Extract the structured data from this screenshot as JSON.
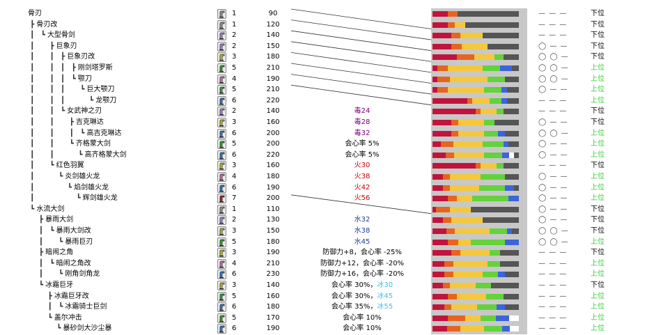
{
  "tree": [
    {
      "indent": "",
      "name": "骨刃"
    },
    {
      "indent": " ┣ ",
      "name": "骨刃改"
    },
    {
      "indent": " ┃   ┗ ",
      "name": "大型骨剑"
    },
    {
      "indent": " ┃       ┣ ",
      "name": "巨象刃"
    },
    {
      "indent": " ┃       ┃   ┣ ",
      "name": "巨象刃改"
    },
    {
      "indent": " ┃       ┃   ┃   ┣ ",
      "name": "刚剑塔罗斯"
    },
    {
      "indent": " ┃       ┃   ┃   ┗ ",
      "name": "颚刀"
    },
    {
      "indent": " ┃       ┃   ┃       ┗ ",
      "name": "巨大颚刀"
    },
    {
      "indent": " ┃       ┃   ┃           ┗ ",
      "name": "龙颚刀"
    },
    {
      "indent": " ┃       ┃   ┗ ",
      "name": "女武神之刃"
    },
    {
      "indent": " ┃       ┃       ┣ ",
      "name": "吉克琳达"
    },
    {
      "indent": " ┃       ┃       ┃   ┗ ",
      "name": "高吉克琳达"
    },
    {
      "indent": " ┃       ┃       ┗ ",
      "name": "齐格蒙大剑"
    },
    {
      "indent": " ┃       ┃           ┗ ",
      "name": "高齐格蒙大剑"
    },
    {
      "indent": " ┃       ┗ ",
      "name": "红色羽翼"
    },
    {
      "indent": " ┃           ┗ ",
      "name": "炎剑雄火龙"
    },
    {
      "indent": " ┃               ┗ ",
      "name": "焰剑雄火龙"
    },
    {
      "indent": " ┃                   ┗ ",
      "name": "辉剑雄火龙"
    },
    {
      "indent": " ┗ ",
      "name": "水流大剑"
    },
    {
      "indent": "     ┣ ",
      "name": "暴雨大剑"
    },
    {
      "indent": "     ┃   ┗ ",
      "name": "暴雨大剑改"
    },
    {
      "indent": "     ┃       ┗ ",
      "name": "暴雨巨刃"
    },
    {
      "indent": "     ┣ ",
      "name": "暗闹之角"
    },
    {
      "indent": "     ┃   ┗ ",
      "name": "暗闹之角改"
    },
    {
      "indent": "     ┃       ┗ ",
      "name": "刚角剑角龙"
    },
    {
      "indent": "     ┗ ",
      "name": "冰霜巨牙"
    },
    {
      "indent": "         ┣ ",
      "name": "冰霜巨牙改"
    },
    {
      "indent": "         ┃   ┗ ",
      "name": "冰霜骑士巨剑"
    },
    {
      "indent": "         ┗ ",
      "name": "盖尔冲击"
    },
    {
      "indent": "             ┗ ",
      "name": "暴砂剑大沙尘暴"
    }
  ],
  "colors": {
    "rarity_icons": {
      "1": "#a0a0a0",
      "2": "#b08ee8",
      "3": "#c8c820",
      "4": "#e070c0",
      "5": "#30b030",
      "6": "#3080e0",
      "7": "#b02020"
    },
    "sharpness": [
      "#c0143c",
      "#e8641e",
      "#f5c83c",
      "#64d23c",
      "#3c64dc",
      "#ffffff",
      "#555555"
    ],
    "element_fire": "#cc0000",
    "element_water": "#1e3c9c",
    "element_ice": "#40c0e0",
    "element_poison": "#800080",
    "rank_high": "#33cc33"
  },
  "weapons": [
    {
      "rarity": "1",
      "attack": "90",
      "special": [],
      "sharp": [
        16,
        10,
        0,
        0,
        0,
        0,
        64
      ],
      "slots": "— — —",
      "rank": "下位",
      "high": false
    },
    {
      "rarity": "1",
      "attack": "120",
      "special": [],
      "sharp": [
        18,
        8,
        12,
        0,
        0,
        0,
        62
      ],
      "slots": "— — —",
      "rank": "下位",
      "high": false
    },
    {
      "rarity": "2",
      "attack": "140",
      "special": [],
      "sharp": [
        22,
        10,
        26,
        0,
        0,
        0,
        42
      ],
      "slots": "— — —",
      "rank": "下位",
      "high": false
    },
    {
      "rarity": "2",
      "attack": "150",
      "special": [],
      "sharp": [
        22,
        12,
        30,
        0,
        0,
        0,
        36
      ],
      "slots": "◯ — —",
      "rank": "下位",
      "high": false
    },
    {
      "rarity": "3",
      "attack": "180",
      "special": [],
      "sharp": [
        28,
        20,
        24,
        10,
        0,
        0,
        18
      ],
      "slots": "◯ ◯ —",
      "rank": "下位",
      "high": false
    },
    {
      "rarity": "5",
      "attack": "210",
      "special": [],
      "sharp": [
        6,
        12,
        40,
        20,
        14,
        0,
        8
      ],
      "slots": "◯ ◯ —",
      "rank": "上位",
      "high": true
    },
    {
      "rarity": "4",
      "attack": "190",
      "special": [],
      "sharp": [
        6,
        14,
        44,
        20,
        0,
        0,
        16
      ],
      "slots": "◯ ◯ —",
      "rank": "上位",
      "high": true
    },
    {
      "rarity": "5",
      "attack": "210",
      "special": [],
      "sharp": [
        6,
        12,
        42,
        20,
        6,
        0,
        14
      ],
      "slots": "◯ — —",
      "rank": "上位",
      "high": true
    },
    {
      "rarity": "6",
      "attack": "220",
      "special": [],
      "sharp": [
        40,
        6,
        20,
        14,
        6,
        0,
        14
      ],
      "slots": "— — —",
      "rank": "上位",
      "high": true
    },
    {
      "rarity": "2",
      "attack": "140",
      "special": [
        {
          "text": "毒24",
          "color": "poison"
        }
      ],
      "sharp": [
        50,
        6,
        18,
        8,
        0,
        0,
        18
      ],
      "slots": "— — —",
      "rank": "下位",
      "high": false
    },
    {
      "rarity": "3",
      "attack": "160",
      "special": [
        {
          "text": "毒28",
          "color": "poison"
        }
      ],
      "sharp": [
        22,
        8,
        30,
        12,
        0,
        0,
        28
      ],
      "slots": "◯ — —",
      "rank": "下位",
      "high": false
    },
    {
      "rarity": "6",
      "attack": "200",
      "special": [
        {
          "text": "毒32",
          "color": "poison"
        }
      ],
      "sharp": [
        22,
        8,
        30,
        16,
        8,
        0,
        16
      ],
      "slots": "◯ ◯ —",
      "rank": "上位",
      "high": true
    },
    {
      "rarity": "5",
      "attack": "200",
      "special": [
        {
          "text": "会心率 5%",
          "color": ""
        }
      ],
      "sharp": [
        10,
        14,
        34,
        24,
        6,
        0,
        12
      ],
      "slots": "◯ — —",
      "rank": "上位",
      "high": true
    },
    {
      "rarity": "6",
      "attack": "220",
      "special": [
        {
          "text": "会心率 5%",
          "color": ""
        }
      ],
      "sharp": [
        16,
        10,
        36,
        22,
        8,
        6,
        6
      ],
      "slots": "◯ — —",
      "rank": "上位",
      "high": true
    },
    {
      "rarity": "3",
      "attack": "160",
      "special": [
        {
          "text": "火30",
          "color": "fire"
        }
      ],
      "sharp": [
        50,
        6,
        18,
        8,
        0,
        0,
        18
      ],
      "slots": "— — —",
      "rank": "下位",
      "high": false
    },
    {
      "rarity": "4",
      "attack": "180",
      "special": [
        {
          "text": "火38",
          "color": "fire"
        }
      ],
      "sharp": [
        12,
        8,
        36,
        28,
        0,
        0,
        16
      ],
      "slots": "◯ — —",
      "rank": "上位",
      "high": true
    },
    {
      "rarity": "6",
      "attack": "190",
      "special": [
        {
          "text": "火42",
          "color": "fire"
        }
      ],
      "sharp": [
        12,
        8,
        34,
        30,
        10,
        0,
        6
      ],
      "slots": "◯ — —",
      "rank": "上位",
      "high": true
    },
    {
      "rarity": "7",
      "attack": "200",
      "special": [
        {
          "text": "火56",
          "color": "fire"
        }
      ],
      "sharp": [
        18,
        10,
        18,
        42,
        12,
        0,
        0
      ],
      "slots": "◯ — —",
      "rank": "上位",
      "high": true
    },
    {
      "rarity": "1",
      "attack": "110",
      "special": [],
      "sharp": [
        4,
        16,
        24,
        0,
        0,
        0,
        56
      ],
      "slots": "◯ — —",
      "rank": "下位",
      "high": false
    },
    {
      "rarity": "2",
      "attack": "130",
      "special": [
        {
          "text": "水32",
          "color": "water"
        }
      ],
      "sharp": [
        12,
        10,
        36,
        0,
        0,
        0,
        42
      ],
      "slots": "◯ — —",
      "rank": "下位",
      "high": false
    },
    {
      "rarity": "3",
      "attack": "150",
      "special": [
        {
          "text": "水38",
          "color": "water"
        }
      ],
      "sharp": [
        16,
        10,
        40,
        20,
        6,
        0,
        8
      ],
      "slots": "◯ ◯ —",
      "rank": "下位",
      "high": false
    },
    {
      "rarity": "5",
      "attack": "180",
      "special": [
        {
          "text": "水45",
          "color": "water"
        }
      ],
      "sharp": [
        18,
        12,
        14,
        40,
        16,
        0,
        0
      ],
      "slots": "◯ ◯ —",
      "rank": "上位",
      "high": true
    },
    {
      "rarity": "3",
      "attack": "190",
      "special": [
        {
          "text": "防御力+8，会心率 -25%",
          "color": ""
        }
      ],
      "sharp": [
        22,
        10,
        34,
        12,
        0,
        0,
        22
      ],
      "slots": "— — —",
      "rank": "下位",
      "high": false
    },
    {
      "rarity": "4",
      "attack": "210",
      "special": [
        {
          "text": "防御力+12，会心率 -20%",
          "color": ""
        }
      ],
      "sharp": [
        14,
        10,
        40,
        14,
        0,
        0,
        22
      ],
      "slots": "— — —",
      "rank": "上位",
      "high": true
    },
    {
      "rarity": "6",
      "attack": "230",
      "special": [
        {
          "text": "防御力+16，会心率 -20%",
          "color": ""
        }
      ],
      "sharp": [
        14,
        10,
        34,
        18,
        8,
        0,
        16
      ],
      "slots": "— — —",
      "rank": "上位",
      "high": true
    },
    {
      "rarity": "3",
      "attack": "140",
      "special": [
        {
          "text": "会心率 30%，",
          "color": ""
        },
        {
          "text": "冰30",
          "color": "ice"
        }
      ],
      "sharp": [
        12,
        8,
        30,
        18,
        0,
        0,
        32
      ],
      "slots": "— — —",
      "rank": "下位",
      "high": false
    },
    {
      "rarity": "5",
      "attack": "160",
      "special": [
        {
          "text": "会心率 30%，",
          "color": ""
        },
        {
          "text": "冰45",
          "color": "ice"
        }
      ],
      "sharp": [
        18,
        10,
        34,
        20,
        0,
        0,
        18
      ],
      "slots": "— — —",
      "rank": "上位",
      "high": true
    },
    {
      "rarity": "6",
      "attack": "180",
      "special": [
        {
          "text": "会心率 35%，",
          "color": ""
        },
        {
          "text": "冰55",
          "color": "ice"
        }
      ],
      "sharp": [
        14,
        8,
        30,
        22,
        10,
        0,
        16
      ],
      "slots": "— — —",
      "rank": "上位",
      "high": true
    },
    {
      "rarity": "5",
      "attack": "170",
      "special": [
        {
          "text": "会心率 10%",
          "color": ""
        }
      ],
      "sharp": [
        16,
        18,
        16,
        16,
        14,
        10,
        0
      ],
      "slots": "— — —",
      "rank": "上位",
      "high": true
    },
    {
      "rarity": "6",
      "attack": "190",
      "special": [
        {
          "text": "会心率 10%",
          "color": ""
        }
      ],
      "sharp": [
        16,
        14,
        26,
        20,
        8,
        10,
        0
      ],
      "slots": "— — —",
      "rank": "上位",
      "high": true
    }
  ]
}
